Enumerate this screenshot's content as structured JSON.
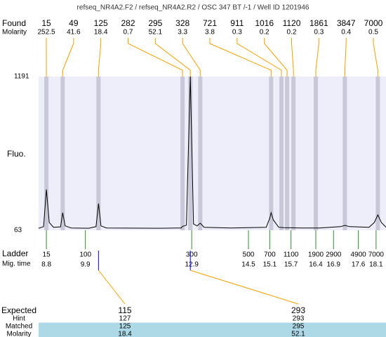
{
  "chart_data": {
    "type": "electropherogram",
    "title": "refseq_NR4A2.F2 / refseq_NR4A2.R2 / OSC 347 BT  /-1 / Well ID 1201946",
    "found_label": "Found",
    "molarity_label": "Molarity",
    "y_label": "Fluo.",
    "ylim": [
      63,
      1191
    ],
    "yticks": [
      1191,
      63
    ],
    "xlim": [
      8.58,
      18.38
    ],
    "plot_color": "#eeeefa",
    "band_color": "#c8c8d8",
    "connector_color": "#f0a000",
    "trace": {
      "color": "#000000",
      "x": [
        8.58,
        8.72,
        8.8,
        8.88,
        9.0,
        9.2,
        9.26,
        9.33,
        9.5,
        10.0,
        10.2,
        10.27,
        10.34,
        10.5,
        12.0,
        12.6,
        12.64,
        12.75,
        12.86,
        12.95,
        13.05,
        13.14,
        13.25,
        14.0,
        15.0,
        15.1,
        15.14,
        15.2,
        15.35,
        15.5,
        16.0,
        16.5,
        17.1,
        17.22,
        17.35,
        17.9,
        18.05,
        18.15,
        18.25,
        18.38
      ],
      "values": [
        78,
        90,
        362,
        120,
        85,
        88,
        192,
        95,
        80,
        78,
        90,
        259,
        95,
        80,
        78,
        80,
        92,
        100,
        1191,
        110,
        95,
        115,
        85,
        80,
        85,
        150,
        192,
        140,
        85,
        82,
        80,
        80,
        90,
        99,
        90,
        85,
        120,
        176,
        120,
        85
      ]
    },
    "peaks": {
      "sizes": [
        15,
        49,
        125,
        282,
        295,
        328,
        721,
        911,
        1016,
        1120,
        1861,
        3847,
        7000
      ],
      "molarity": [
        252.5,
        41.6,
        18.4,
        0.7,
        52.1,
        3.3,
        3.8,
        0.3,
        0.2,
        0.2,
        0.3,
        0.4,
        0.5
      ],
      "times": [
        8.8,
        9.26,
        10.27,
        12.64,
        12.86,
        13.14,
        15.14,
        15.43,
        15.59,
        15.77,
        16.4,
        17.22,
        18.15
      ]
    },
    "ladder": {
      "label": "Ladder",
      "time_label": "Mig. time",
      "color": "#2e8b2e",
      "sizes": [
        15,
        100,
        300,
        500,
        700,
        1100,
        1900,
        2900,
        4900,
        7000
      ],
      "times": [
        8.8,
        9.9,
        12.9,
        14.5,
        15.1,
        15.7,
        16.4,
        16.9,
        17.6,
        18.1
      ]
    },
    "expected": {
      "labels": [
        "Expected",
        "Hint",
        "Matched",
        "Molarity"
      ],
      "highlight_color": "#add8e6",
      "marker_color": "#0000cc",
      "columns": [
        {
          "expected": 115,
          "hint": 127,
          "matched": 125,
          "molarity": 18.4
        },
        {
          "expected": 293,
          "hint": 293,
          "matched": 295,
          "molarity": 52.1
        }
      ]
    }
  }
}
